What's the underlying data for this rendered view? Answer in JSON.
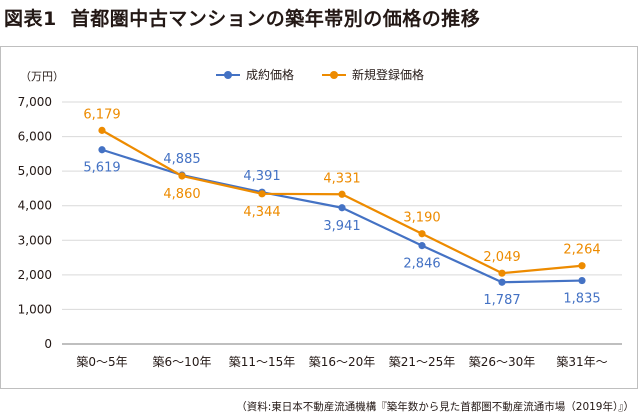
{
  "header": {
    "figure_label": "図表1",
    "title": "首都圏中古マンションの築年帯別の価格の推移"
  },
  "source": "（資料:東日本不動産流通機構『築年数から見た首都圏不動産流通市場（2019年）』）",
  "colors": {
    "blue": "#4472c4",
    "orange": "#ed8b00",
    "grid": "#d9d9d9",
    "axis": "#7f7f7f",
    "text": "#231815"
  },
  "chart_data": {
    "type": "line",
    "title": "首都圏中古マンションの築年帯別の価格の推移",
    "unit_label": "（万円）",
    "categories": [
      "築0〜5年",
      "築6〜10年",
      "築11〜15年",
      "築16〜20年",
      "築21〜25年",
      "築26〜30年",
      "築31年〜"
    ],
    "ylim": [
      0,
      7000
    ],
    "yticks": [
      0,
      1000,
      2000,
      3000,
      4000,
      5000,
      6000,
      7000
    ],
    "ytick_labels": [
      "0",
      "1,000",
      "2,000",
      "3,000",
      "4,000",
      "5,000",
      "6,000",
      "7,000"
    ],
    "grid": true,
    "legend": "top-center",
    "series": [
      {
        "name": "成約価格",
        "color": "#4472c4",
        "values": [
          5619,
          4885,
          4391,
          3941,
          2846,
          1787,
          1835
        ],
        "labels": [
          "5,619",
          "4,885",
          "4,391",
          "3,941",
          "2,846",
          "1,787",
          "1,835"
        ]
      },
      {
        "name": "新規登録価格",
        "color": "#ed8b00",
        "values": [
          6179,
          4860,
          4344,
          4331,
          3190,
          2049,
          2264
        ],
        "labels": [
          "6,179",
          "4,860",
          "4,344",
          "4,331",
          "3,190",
          "2,049",
          "2,264"
        ]
      }
    ]
  }
}
